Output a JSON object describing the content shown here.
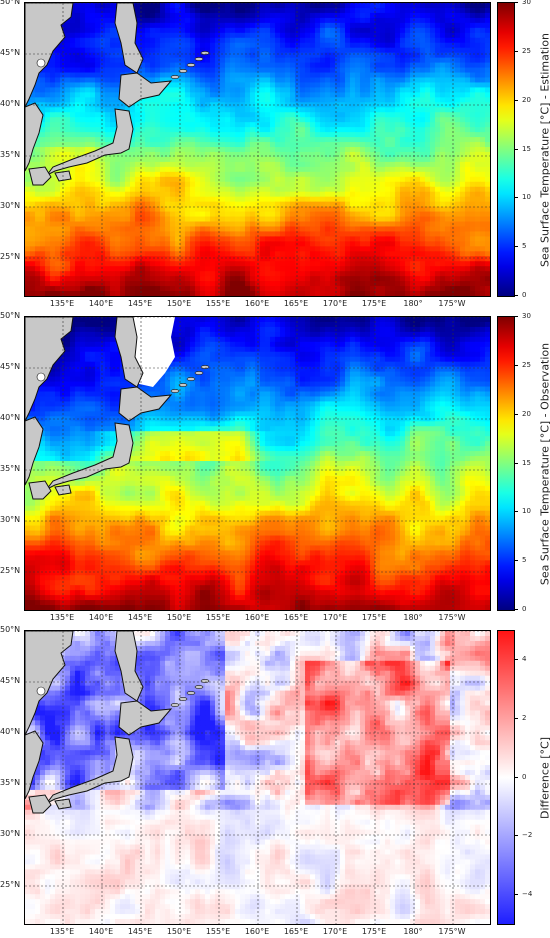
{
  "panels": [
    {
      "id": "estimation",
      "scale": "sst",
      "colorbar_label": "Sea Surface Temperature [°C] - Estimation",
      "colorbar_ticks": [
        "0",
        "5",
        "10",
        "15",
        "20",
        "25",
        "30"
      ],
      "colorbar_range": [
        0,
        30
      ],
      "ice_region": false
    },
    {
      "id": "observation",
      "scale": "sst",
      "colorbar_label": "Sea Surface Temperature [°C] - Observation",
      "colorbar_ticks": [
        "0",
        "5",
        "10",
        "15",
        "20",
        "25",
        "30"
      ],
      "colorbar_range": [
        0,
        30
      ],
      "ice_region": true
    },
    {
      "id": "difference",
      "scale": "diff",
      "colorbar_label": "Difference [°C]",
      "colorbar_ticks": [
        "−4",
        "−2",
        "0",
        "2",
        "4"
      ],
      "colorbar_range": [
        -5,
        5
      ],
      "ice_region": false
    }
  ],
  "lat_labels": [
    "50°N",
    "45°N",
    "40°N",
    "35°N",
    "30°N",
    "25°N"
  ],
  "lon_labels": [
    "135°E",
    "140°E",
    "145°E",
    "150°E",
    "155°E",
    "160°E",
    "165°E",
    "170°E",
    "175°E",
    "180°",
    "175°W"
  ],
  "colors": {
    "land": "#c8c8c8",
    "coast": "#111111",
    "ice_white": "#ffffff"
  }
}
